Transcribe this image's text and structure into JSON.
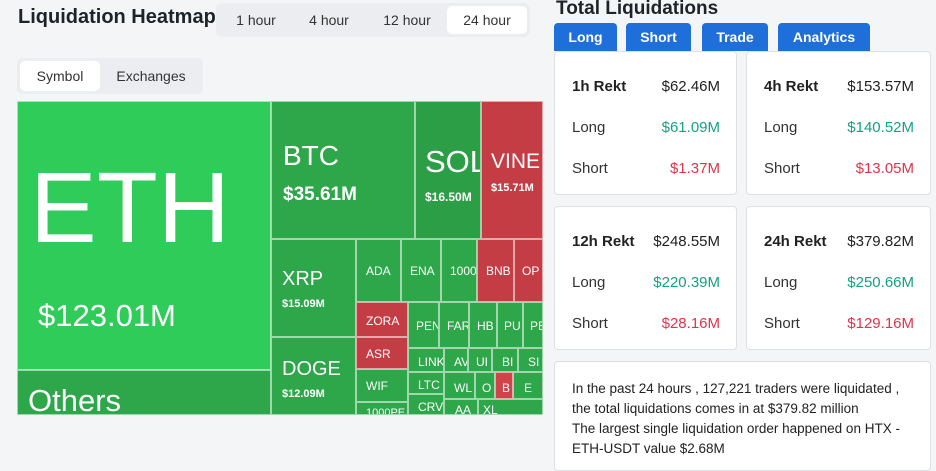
{
  "header": {
    "title": "Liquidation Heatmap"
  },
  "time_tabs": [
    {
      "label": "1 hour",
      "active": false
    },
    {
      "label": "4 hour",
      "active": false
    },
    {
      "label": "12 hour",
      "active": false
    },
    {
      "label": "24 hour",
      "active": true
    }
  ],
  "view_tabs": [
    {
      "label": "Symbol",
      "active": true
    },
    {
      "label": "Exchanges",
      "active": false
    }
  ],
  "heatmap": {
    "eth": {
      "symbol": "ETH",
      "value": "$123.01M"
    },
    "others": {
      "symbol": "Others"
    },
    "btc": {
      "symbol": "BTC",
      "value": "$35.61M"
    },
    "sol": {
      "symbol": "SOL",
      "value": "$16.50M"
    },
    "vine": {
      "symbol": "VINE",
      "value": "$15.71M"
    },
    "xrp": {
      "symbol": "XRP",
      "value": "$15.09M"
    },
    "doge": {
      "symbol": "DOGE",
      "value": "$12.09M"
    },
    "ada": {
      "symbol": "ADA"
    },
    "ena": {
      "symbol": "ENA"
    },
    "c1000": {
      "symbol": "1000"
    },
    "bnb": {
      "symbol": "BNB"
    },
    "op": {
      "symbol": "OP"
    },
    "zora": {
      "symbol": "ZORA"
    },
    "asr": {
      "symbol": "ASR"
    },
    "wif": {
      "symbol": "WIF"
    },
    "c1000pe": {
      "symbol": "1000PE"
    },
    "pen": {
      "symbol": "PEN"
    },
    "far": {
      "symbol": "FAR"
    },
    "hb": {
      "symbol": "HB"
    },
    "pu": {
      "symbol": "PU"
    },
    "pe": {
      "symbol": "PE"
    },
    "link": {
      "symbol": "LINK"
    },
    "av": {
      "symbol": "AV"
    },
    "ui": {
      "symbol": "UI"
    },
    "bi": {
      "symbol": "BI"
    },
    "si": {
      "symbol": "SI"
    },
    "ltc": {
      "symbol": "LTC"
    },
    "wl": {
      "symbol": "WL"
    },
    "o": {
      "symbol": "O"
    },
    "b": {
      "symbol": "B"
    },
    "e": {
      "symbol": "E"
    },
    "crv": {
      "symbol": "CRV"
    },
    "aa": {
      "symbol": "AA"
    },
    "xl": {
      "symbol": "XL"
    }
  },
  "right_panel": {
    "title": "Total Liquidations",
    "tabs": [
      "Long",
      "Short",
      "Trade",
      "Analytics"
    ],
    "cards": [
      {
        "period": "1h Rekt",
        "total": "$62.46M",
        "long_label": "Long",
        "long": "$61.09M",
        "short_label": "Short",
        "short": "$1.37M"
      },
      {
        "period": "4h Rekt",
        "total": "$153.57M",
        "long_label": "Long",
        "long": "$140.52M",
        "short_label": "Short",
        "short": "$13.05M"
      },
      {
        "period": "12h Rekt",
        "total": "$248.55M",
        "long_label": "Long",
        "long": "$220.39M",
        "short_label": "Short",
        "short": "$28.16M"
      },
      {
        "period": "24h Rekt",
        "total": "$379.82M",
        "long_label": "Long",
        "long": "$250.66M",
        "short_label": "Short",
        "short": "$129.16M"
      }
    ],
    "info": {
      "line1": "In the past 24 hours , 127,221 traders were liquidated ,",
      "line2": "the total liquidations comes in at $379.82 million",
      "line3": "The largest single liquidation order happened on HTX -",
      "line4": "ETH-USDT value $2.68M"
    }
  },
  "colors": {
    "green_light": "#2fcc5a",
    "green": "#2ea64a",
    "red": "#c43d44",
    "accent_blue": "#1e6fd9"
  }
}
